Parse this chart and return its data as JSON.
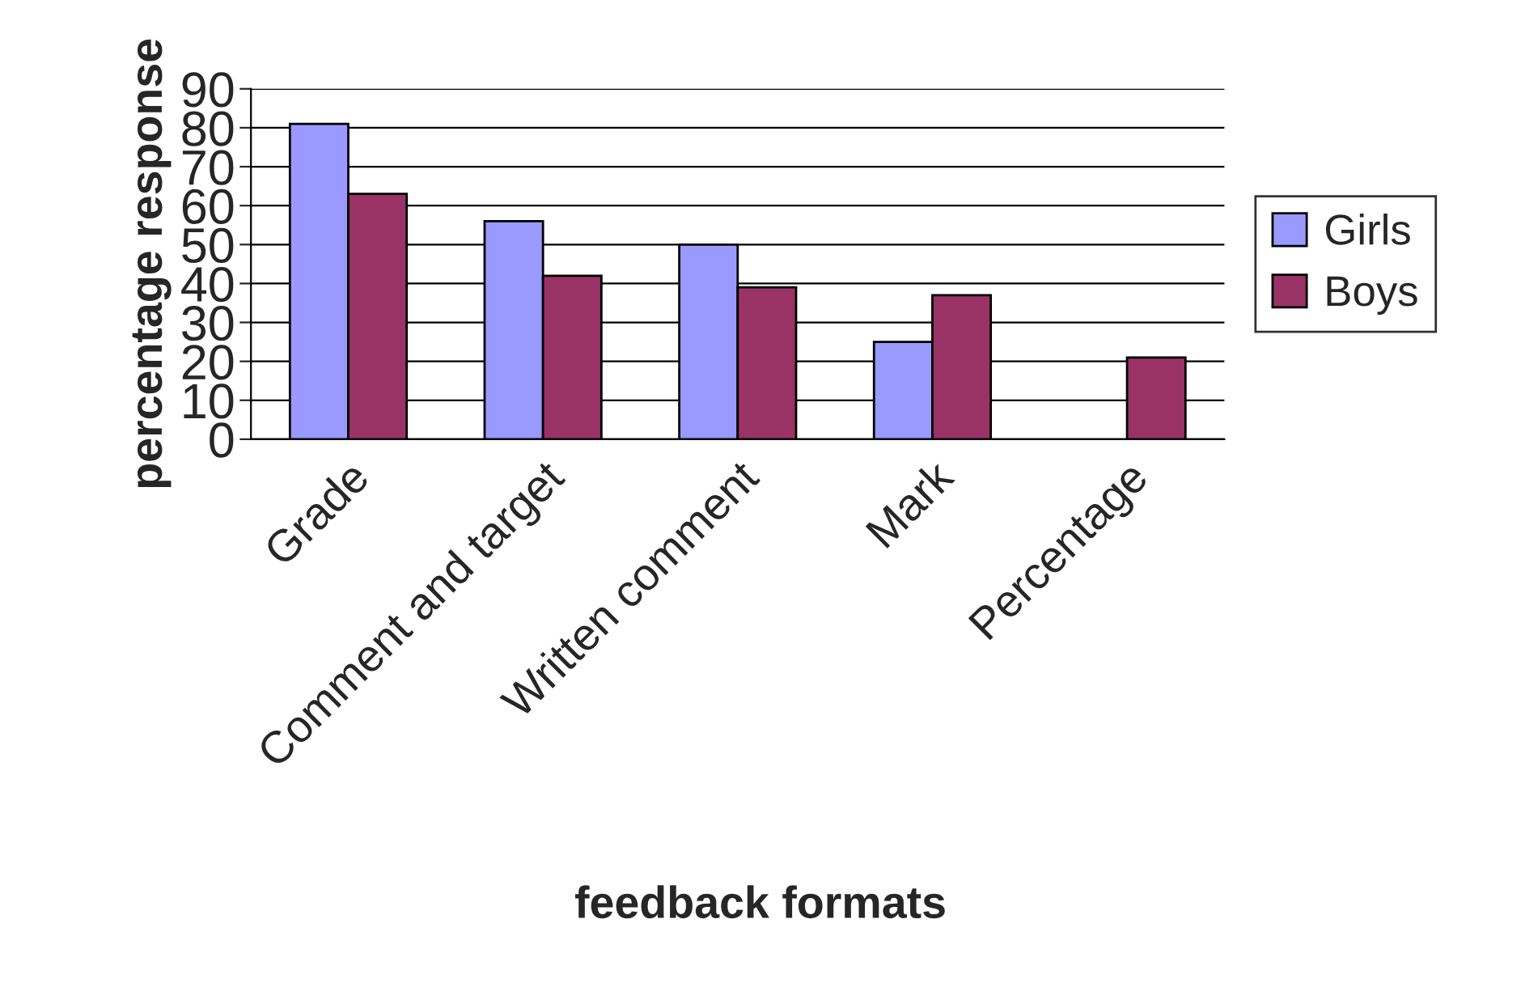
{
  "chart_data": {
    "type": "bar",
    "xlabel": "feedback formats",
    "ylabel": "percentage response",
    "categories": [
      "Grade",
      "Comment and target",
      "Written comment",
      "Mark",
      "Percentage"
    ],
    "series": [
      {
        "name": "Girls",
        "color": "#9999ff",
        "values": [
          81,
          56,
          50,
          25,
          null
        ]
      },
      {
        "name": "Boys",
        "color": "#993366",
        "values": [
          63,
          42,
          39,
          37,
          21
        ]
      }
    ],
    "ylim": [
      0,
      90
    ],
    "yticks": [
      0,
      10,
      20,
      30,
      40,
      50,
      60,
      70,
      80,
      90
    ],
    "grid": "y",
    "legend": "right"
  }
}
